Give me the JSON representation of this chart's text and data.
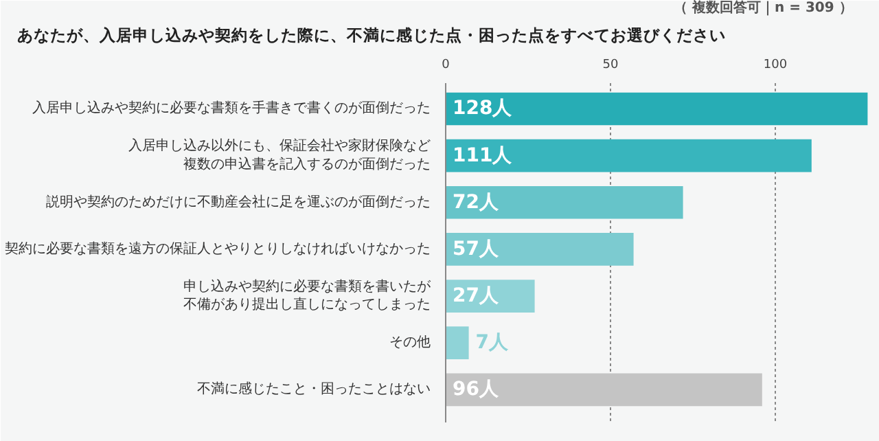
{
  "chart_data": {
    "type": "bar",
    "orientation": "horizontal",
    "title": "あなたが、入居申し込みや契約をした際に、不満に感じた点・困った点をすべてお選びください",
    "subtitle": "（ 複数回答可｜n = 309 ）",
    "categories": [
      "入居申し込みや契約に必要な書類を手書きで書くのが面倒だった",
      "入居申し込み以外にも、保証会社や家財保険など複数の申込書を記入するのが面倒だった",
      "説明や契約のためだけに不動産会社に足を運ぶのが面倒だった",
      "契約に必要な書類を遠方の保証人とやりとりしなければいけなかった",
      "申し込みや契約に必要な書類を書いたが不備があり提出し直しになってしまった",
      "その他",
      "不満に感じたこと・困ったことはない"
    ],
    "values": [
      128,
      111,
      72,
      57,
      27,
      7,
      96
    ],
    "colors": [
      "#27adb5",
      "#38b5bd",
      "#66c4c9",
      "#7ccbd0",
      "#8fd3d7",
      "#8fd3d7",
      "#c4c4c4"
    ],
    "value_labels": [
      "128人",
      "111人",
      "72人",
      "57人",
      "27人",
      "7人",
      "96人"
    ],
    "xlim": [
      0,
      130
    ],
    "xticks": [
      0,
      50,
      100
    ],
    "grid": "x"
  }
}
